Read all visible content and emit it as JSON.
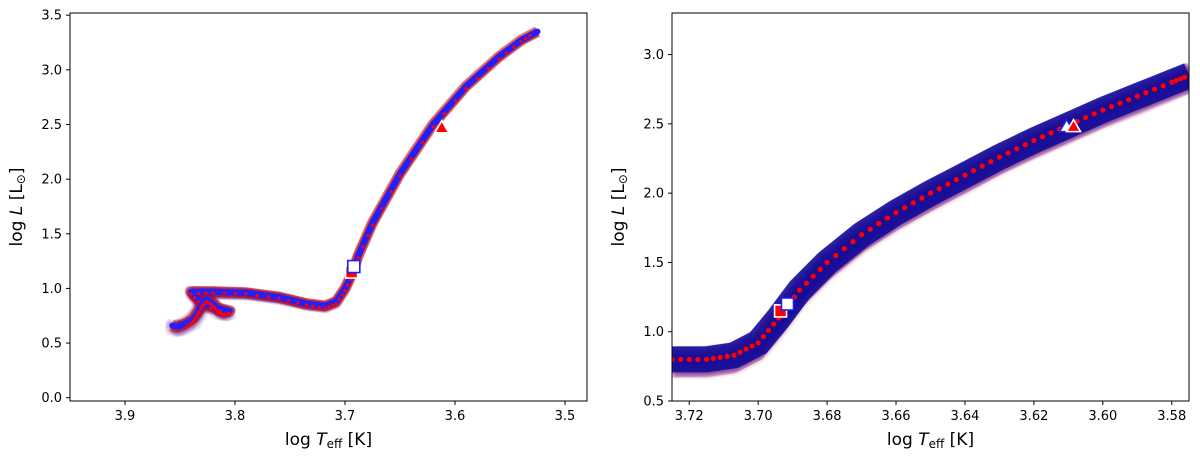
{
  "chart_data": [
    {
      "type": "line",
      "panel": "left",
      "xlabel": {
        "pre": "log ",
        "sym": "T",
        "sub": "eff",
        "post": " [K]"
      },
      "ylabel": {
        "pre": "log ",
        "sym": "L",
        "post": " [L",
        "sun": "⊙",
        "close": "]"
      },
      "xlim": [
        3.95,
        3.48
      ],
      "ylim": [
        -0.03,
        3.52
      ],
      "x_inverted": true,
      "xticks": [
        3.9,
        3.8,
        3.7,
        3.6,
        3.5
      ],
      "xtick_labels": [
        "3.9",
        "3.8",
        "3.7",
        "3.6",
        "3.5"
      ],
      "yticks": [
        0.0,
        0.5,
        1.0,
        1.5,
        2.0,
        2.5,
        3.0,
        3.5
      ],
      "ytick_labels": [
        "0.0",
        "0.5",
        "1.0",
        "1.5",
        "2.0",
        "2.5",
        "3.0",
        "3.5"
      ],
      "series": [
        {
          "role": "best_track",
          "color": "#1f1fff",
          "x": [
            3.857,
            3.852,
            3.845,
            3.838,
            3.834,
            3.83,
            3.826,
            3.82,
            3.815,
            3.81,
            3.805,
            3.83,
            3.84,
            3.82,
            3.79,
            3.76,
            3.735,
            3.718,
            3.708,
            3.7,
            3.693,
            3.688,
            3.675,
            3.65,
            3.62,
            3.59,
            3.56,
            3.54,
            3.525
          ],
          "y": [
            0.66,
            0.65,
            0.68,
            0.72,
            0.78,
            0.85,
            0.9,
            0.86,
            0.8,
            0.78,
            0.79,
            0.86,
            0.97,
            0.97,
            0.96,
            0.92,
            0.86,
            0.84,
            0.88,
            1.0,
            1.15,
            1.3,
            1.6,
            2.05,
            2.5,
            2.85,
            3.12,
            3.27,
            3.35
          ]
        },
        {
          "role": "reference_track",
          "color": "#ff0000",
          "x": [
            3.845,
            3.838,
            3.834,
            3.83,
            3.826,
            3.82,
            3.815,
            3.81,
            3.805,
            3.83,
            3.84,
            3.82,
            3.79,
            3.76,
            3.735,
            3.718,
            3.708,
            3.7,
            3.693,
            3.688,
            3.675,
            3.65,
            3.62,
            3.59,
            3.56,
            3.54,
            3.528
          ],
          "y": [
            0.64,
            0.7,
            0.76,
            0.83,
            0.88,
            0.84,
            0.78,
            0.76,
            0.77,
            0.84,
            0.95,
            0.96,
            0.95,
            0.91,
            0.85,
            0.82,
            0.86,
            0.98,
            1.13,
            1.28,
            1.58,
            2.03,
            2.48,
            2.83,
            3.1,
            3.26,
            3.34
          ]
        }
      ],
      "markers": [
        {
          "shape": "square",
          "fill": "#ff0000",
          "edge": "#ffffff",
          "x": 3.694,
          "y": 1.15
        },
        {
          "shape": "square",
          "fill": "#ffffff",
          "edge": "#1f1fff",
          "x": 3.692,
          "y": 1.2
        },
        {
          "shape": "triangle",
          "fill": "#ff0000",
          "edge": "#ffffff",
          "x": 3.612,
          "y": 2.47
        }
      ]
    },
    {
      "type": "line",
      "panel": "right",
      "xlabel": {
        "pre": "log ",
        "sym": "T",
        "sub": "eff",
        "post": " [K]"
      },
      "ylabel": {
        "pre": "log ",
        "sym": "L",
        "post": " [L",
        "sun": "⊙",
        "close": "]"
      },
      "xlim": [
        3.725,
        3.575
      ],
      "ylim": [
        0.5,
        3.3
      ],
      "x_inverted": true,
      "xticks": [
        3.72,
        3.7,
        3.68,
        3.66,
        3.64,
        3.62,
        3.6,
        3.58
      ],
      "xtick_labels": [
        "3.72",
        "3.70",
        "3.68",
        "3.66",
        "3.64",
        "3.62",
        "3.60",
        "3.58"
      ],
      "yticks": [
        0.5,
        1.0,
        1.5,
        2.0,
        2.5,
        3.0
      ],
      "ytick_labels": [
        "0.5",
        "1.0",
        "1.5",
        "2.0",
        "2.5",
        "3.0"
      ],
      "series": [
        {
          "role": "reference_track_dotted",
          "color": "#ff0000",
          "x": [
            3.725,
            3.715,
            3.707,
            3.7,
            3.694,
            3.688,
            3.68,
            3.67,
            3.66,
            3.65,
            3.64,
            3.63,
            3.62,
            3.61,
            3.6,
            3.59,
            3.58,
            3.575
          ],
          "y": [
            0.8,
            0.8,
            0.83,
            0.92,
            1.1,
            1.3,
            1.5,
            1.7,
            1.86,
            2.0,
            2.13,
            2.26,
            2.38,
            2.49,
            2.6,
            2.7,
            2.8,
            2.85
          ]
        }
      ],
      "markers": [
        {
          "shape": "square",
          "fill": "#ff0000",
          "edge": "#ffffff",
          "x": 3.6935,
          "y": 1.15
        },
        {
          "shape": "square",
          "fill": "#ffffff",
          "edge": "#1f1fff",
          "x": 3.6915,
          "y": 1.2
        },
        {
          "shape": "triangle",
          "fill": "#ffffff",
          "edge": "#1f1fff",
          "x": 3.6105,
          "y": 2.48
        },
        {
          "shape": "triangle",
          "fill": "#ff0000",
          "edge": "#ffffff",
          "x": 3.6085,
          "y": 2.48
        }
      ]
    }
  ]
}
